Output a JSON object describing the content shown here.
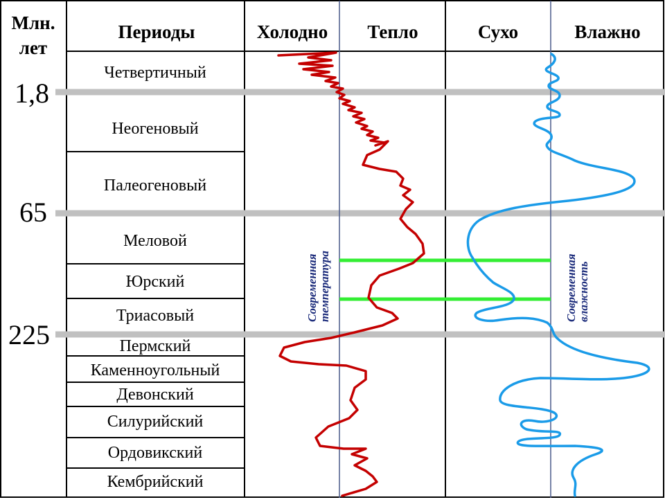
{
  "headers": {
    "age": [
      "Млн.",
      "лет"
    ],
    "periods": "Периоды",
    "cold": "Холодно",
    "warm": "Тепло",
    "dry": "Сухо",
    "wet": "Влажно"
  },
  "ages": [
    "1,8",
    "65",
    "225"
  ],
  "periods": [
    "Четвертичный",
    "Неогеновый",
    "Палеогеновый",
    "Меловой",
    "Юрский",
    "Триасовый",
    "Пермский",
    "Каменноугольный",
    "Девонский",
    "Силурийский",
    "Ордовикский",
    "Кембрийский"
  ],
  "reference_labels": {
    "temperature": [
      "Современная",
      "температура"
    ],
    "humidity": [
      "Современная",
      "влажность"
    ]
  },
  "colors": {
    "temperature_curve": "#c40000",
    "humidity_curve": "#1a9be8",
    "boundary_line": "#c0c0c0",
    "highlight_line": "#33ee33",
    "reference_line": "#4a5a8a",
    "reference_text": "#1a2a7a"
  }
}
